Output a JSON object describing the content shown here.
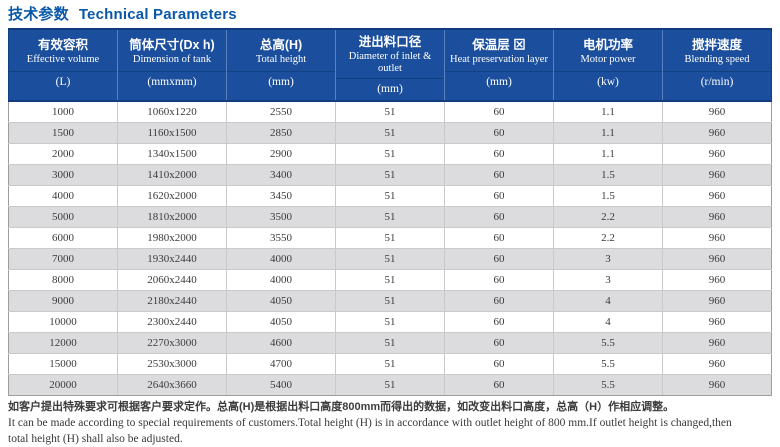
{
  "page": {
    "title_zh": "技术参数",
    "title_en": "Technical Parameters"
  },
  "colors": {
    "title_blue": "#0a58a8",
    "header_bg": "#1b4f9d",
    "header_dark_border": "#103c7e",
    "stripe_gray": "#dcdcdf",
    "body_text": "#3b3b3b"
  },
  "table": {
    "columns": [
      {
        "zh": "有效容积",
        "en": "Effective volume",
        "unit": "(L)"
      },
      {
        "zh": "筒体尺寸(Dx h)",
        "en": "Dimension of tank",
        "unit": "(mmxmm)"
      },
      {
        "zh": "总高(H)",
        "en": "Total height",
        "unit": "(mm)"
      },
      {
        "zh": "进出料口径",
        "en": "Diameter of inlet & outlet",
        "unit": "(mm)"
      },
      {
        "zh": "保温层 ⊠",
        "en": "Heat preservation layer",
        "unit": "(mm)"
      },
      {
        "zh": "电机功率",
        "en": "Motor power",
        "unit": "(kw)"
      },
      {
        "zh": "搅拌速度",
        "en": "Blending speed",
        "unit": "(r/min)"
      }
    ],
    "rows": [
      [
        "1000",
        "1060x1220",
        "2550",
        "51",
        "60",
        "1.1",
        "960"
      ],
      [
        "1500",
        "1160x1500",
        "2850",
        "51",
        "60",
        "1.1",
        "960"
      ],
      [
        "2000",
        "1340x1500",
        "2900",
        "51",
        "60",
        "1.1",
        "960"
      ],
      [
        "3000",
        "1410x2000",
        "3400",
        "51",
        "60",
        "1.5",
        "960"
      ],
      [
        "4000",
        "1620x2000",
        "3450",
        "51",
        "60",
        "1.5",
        "960"
      ],
      [
        "5000",
        "1810x2000",
        "3500",
        "51",
        "60",
        "2.2",
        "960"
      ],
      [
        "6000",
        "1980x2000",
        "3550",
        "51",
        "60",
        "2.2",
        "960"
      ],
      [
        "7000",
        "1930x2440",
        "4000",
        "51",
        "60",
        "3",
        "960"
      ],
      [
        "8000",
        "2060x2440",
        "4000",
        "51",
        "60",
        "3",
        "960"
      ],
      [
        "9000",
        "2180x2440",
        "4050",
        "51",
        "60",
        "4",
        "960"
      ],
      [
        "10000",
        "2300x2440",
        "4050",
        "51",
        "60",
        "4",
        "960"
      ],
      [
        "12000",
        "2270x3000",
        "4600",
        "51",
        "60",
        "5.5",
        "960"
      ],
      [
        "15000",
        "2530x3000",
        "4700",
        "51",
        "60",
        "5.5",
        "960"
      ],
      [
        "20000",
        "2640x3660",
        "5400",
        "51",
        "60",
        "5.5",
        "960"
      ]
    ]
  },
  "notes": {
    "zh": "如客户提出特殊要求可根据客户要求定作。总高(H)是根据出料口高度800mm而得出的数据，如改变出料口高度，总高（H）作相应调整。",
    "en_line1": "It can be made according to special requirements of customers.Total height (H) is in accordance with outlet height of 800 mm.If outlet height is changed,then",
    "en_line2": "total height (H) shall also be adjusted."
  }
}
